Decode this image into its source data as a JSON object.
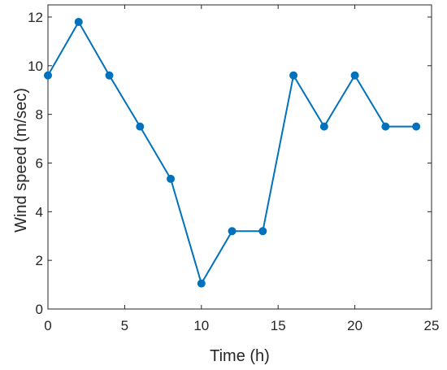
{
  "chart_data": {
    "type": "line",
    "title": "",
    "xlabel": "Time (h)",
    "ylabel": "Wind speed (m/sec)",
    "xlim": [
      0,
      25
    ],
    "ylim": [
      0,
      12.5
    ],
    "x_ticks": [
      0,
      5,
      10,
      15,
      20,
      25
    ],
    "y_ticks": [
      0,
      2,
      4,
      6,
      8,
      10,
      12
    ],
    "grid": false,
    "legend": "none",
    "series": [
      {
        "color": "#0072BD",
        "marker": "circle",
        "x": [
          0,
          2,
          4,
          6,
          8,
          10,
          12,
          14,
          16,
          18,
          20,
          22,
          24
        ],
        "y": [
          9.6,
          11.8,
          9.6,
          7.5,
          5.35,
          1.05,
          3.2,
          3.2,
          9.6,
          7.5,
          9.6,
          7.5,
          7.5
        ]
      }
    ]
  }
}
